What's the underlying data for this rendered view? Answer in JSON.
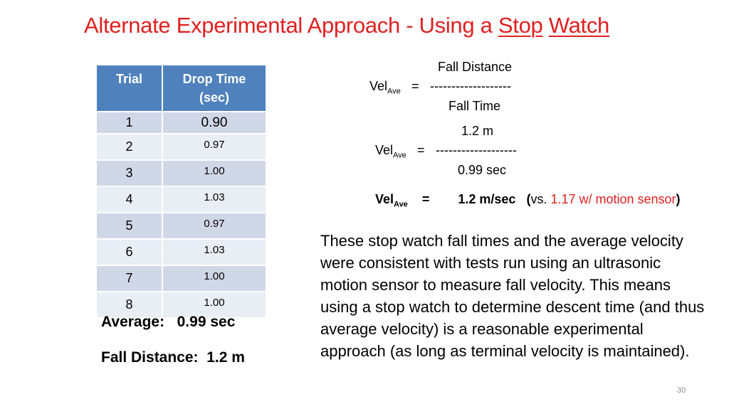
{
  "title": {
    "prefix": "Alternate Experimental Approach - Using a ",
    "word1": "Stop",
    "space": " ",
    "word2": "Watch"
  },
  "table": {
    "headers": [
      "Trial",
      "Drop Time (sec)"
    ],
    "rows": [
      {
        "trial": "1",
        "time": "0.90"
      },
      {
        "trial": "2",
        "time": "0.97"
      },
      {
        "trial": "3",
        "time": "1.00"
      },
      {
        "trial": "4",
        "time": "1.03"
      },
      {
        "trial": "5",
        "time": "0.97"
      },
      {
        "trial": "6",
        "time": "1.03"
      },
      {
        "trial": "7",
        "time": "1.00"
      },
      {
        "trial": "8",
        "time": "1.00"
      }
    ]
  },
  "summary": {
    "average_label": "Average:",
    "average_value": "0.99 sec",
    "fall_distance_label": "Fall Distance:",
    "fall_distance_value": "1.2 m"
  },
  "formula1": {
    "numerator": "Fall Distance",
    "lhs": "Vel",
    "lhs_sub": "Ave",
    "op": "=",
    "bar": "-------------------",
    "denominator": "Fall Time"
  },
  "formula2": {
    "numerator": "1.2  m",
    "lhs": "Vel",
    "lhs_sub": "Ave",
    "op": "=",
    "bar": "-------------------",
    "denominator": "0.99  sec"
  },
  "formula3": {
    "lhs": "Vel",
    "lhs_sub": "Ave",
    "op": "=",
    "value": "1.2  m/sec",
    "paren_open": "(",
    "vs": "vs. ",
    "comparison": "1.17 w/ motion sensor",
    "paren_close": ")"
  },
  "paragraph": "These stop watch fall times and the average velocity were consistent with tests run using an ultrasonic motion sensor to measure fall velocity. This means using a stop watch to determine descent time (and thus average velocity) is a reasonable experimental approach (as long as terminal velocity is maintained).",
  "page_number": "30",
  "colors": {
    "title_red": "#e02020",
    "header_blue": "#4f81bd",
    "row_odd": "#d0d8e8",
    "row_even": "#e9edf4"
  }
}
